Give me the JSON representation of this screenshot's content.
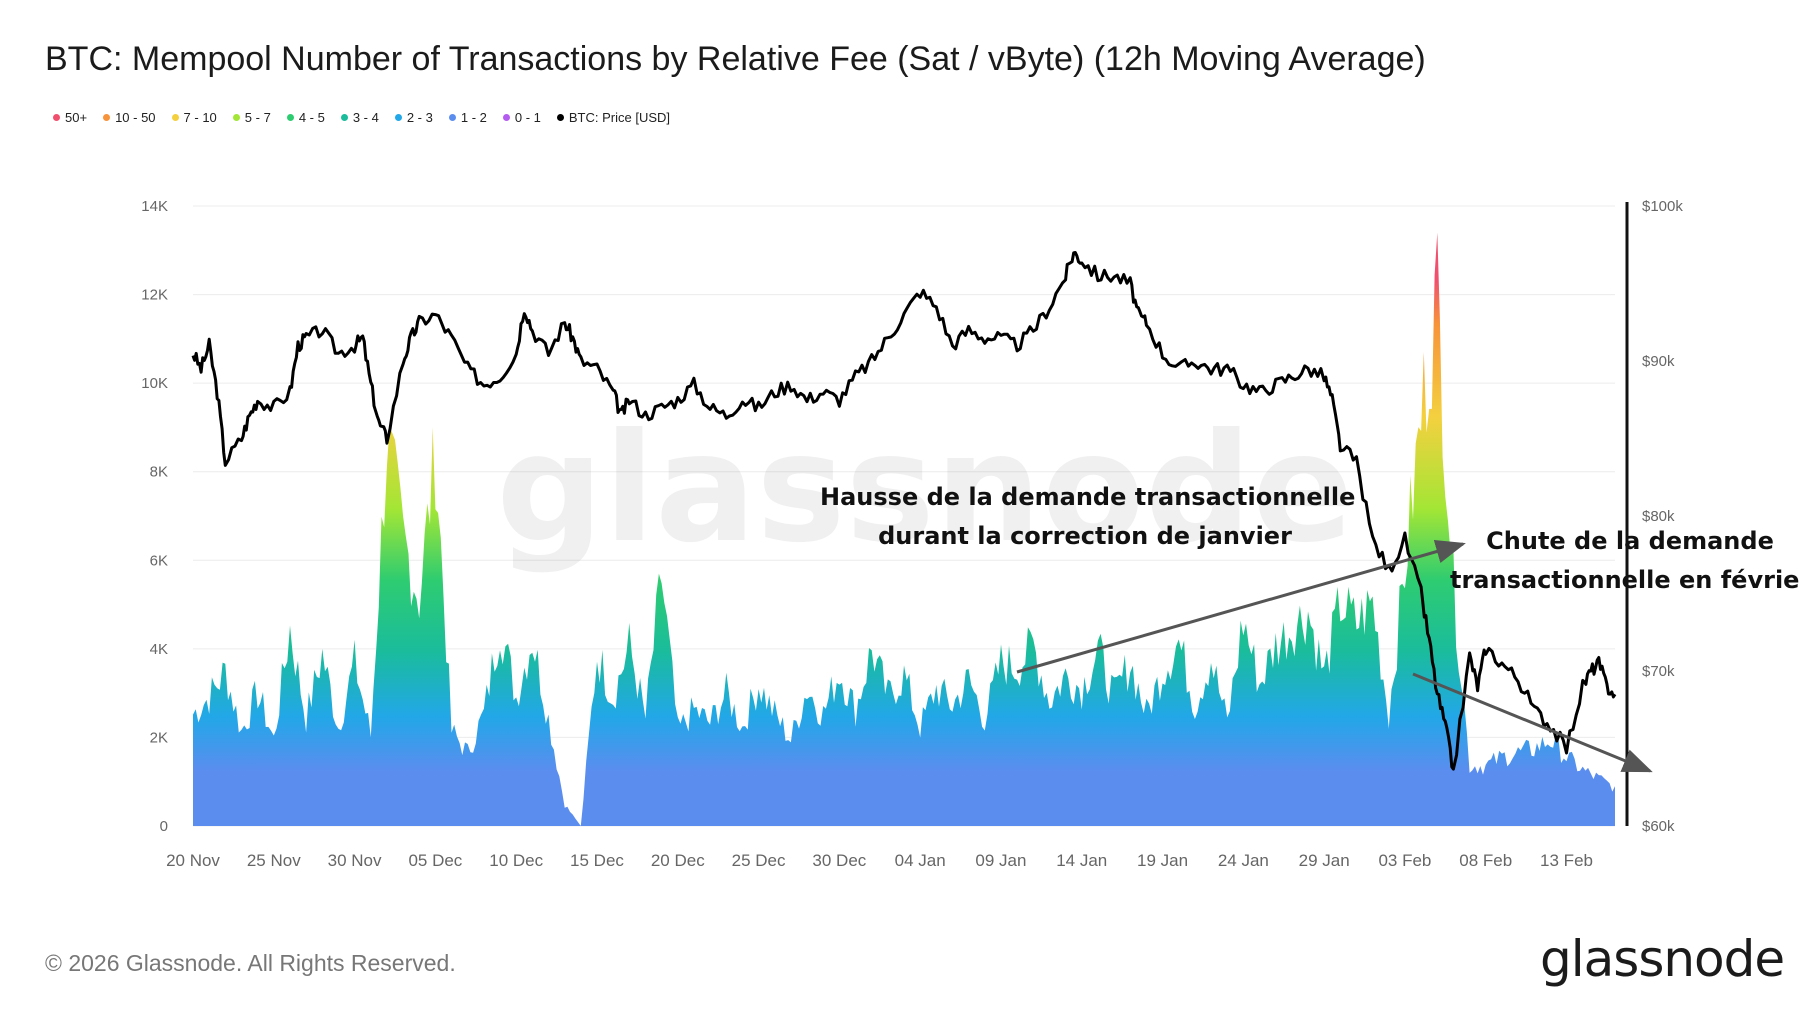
{
  "title": "BTC: Mempool Number of Transactions by Relative Fee (Sat / vByte) (12h Moving Average)",
  "legend": [
    {
      "label": "50+",
      "color": "#f0506e"
    },
    {
      "label": "10 - 50",
      "color": "#f7933a"
    },
    {
      "label": "7 - 10",
      "color": "#f4d03f"
    },
    {
      "label": "5 - 7",
      "color": "#a3e635"
    },
    {
      "label": "4 - 5",
      "color": "#2ecc71"
    },
    {
      "label": "3 - 4",
      "color": "#1abc9c"
    },
    {
      "label": "2 - 3",
      "color": "#22a7e8"
    },
    {
      "label": "1 - 2",
      "color": "#5b8def"
    },
    {
      "label": "0 - 1",
      "color": "#b45cf0"
    },
    {
      "label": "BTC: Price [USD]",
      "color": "#000000"
    }
  ],
  "annotations": {
    "rise_line1": "Hausse de la demande transactionnelle",
    "rise_line2": "durant la correction de janvier",
    "fall_line1": "Chute de la demande",
    "fall_line2": "transactionnelle en février"
  },
  "footer": {
    "copyright": "© 2026 Glassnode. All Rights Reserved.",
    "logo": "glassnode",
    "watermark": "glassnode"
  },
  "chart_data": {
    "type": "area",
    "x_tick_labels": [
      "20 Nov",
      "25 Nov",
      "30 Nov",
      "05 Dec",
      "10 Dec",
      "15 Dec",
      "20 Dec",
      "25 Dec",
      "30 Dec",
      "04 Jan",
      "09 Jan",
      "14 Jan",
      "19 Jan",
      "24 Jan",
      "29 Jan",
      "03 Feb",
      "08 Feb",
      "13 Feb"
    ],
    "x_range_days": [
      0,
      88
    ],
    "y_left": {
      "tick_labels": [
        "0",
        "2K",
        "4K",
        "6K",
        "8K",
        "10K",
        "12K",
        "14K"
      ],
      "range": [
        0,
        14000
      ]
    },
    "y_right": {
      "tick_labels": [
        "$60k",
        "$70k",
        "$80k",
        "$90k",
        "$100k"
      ],
      "range": [
        60000,
        100000
      ]
    },
    "grid": "horizontal",
    "legend_position": "top-left",
    "mempool_total": [
      [
        0,
        2600
      ],
      [
        1,
        3000
      ],
      [
        2,
        3600
      ],
      [
        3,
        2200
      ],
      [
        4,
        3100
      ],
      [
        5,
        2000
      ],
      [
        6,
        4600
      ],
      [
        7,
        2500
      ],
      [
        8,
        4000
      ],
      [
        9,
        2300
      ],
      [
        10,
        3800
      ],
      [
        11,
        2100
      ],
      [
        12,
        9000
      ],
      [
        13,
        6700
      ],
      [
        14,
        5300
      ],
      [
        15,
        8700
      ],
      [
        16,
        2200
      ],
      [
        17,
        1700
      ],
      [
        18,
        2600
      ],
      [
        19,
        4700
      ],
      [
        20,
        3000
      ],
      [
        21,
        4400
      ],
      [
        22,
        2500
      ],
      [
        23,
        500
      ],
      [
        24,
        0
      ],
      [
        25,
        4000
      ],
      [
        26,
        3000
      ],
      [
        27,
        4200
      ],
      [
        28,
        2500
      ],
      [
        29,
        5800
      ],
      [
        30,
        2200
      ],
      [
        31,
        2700
      ],
      [
        32,
        2400
      ],
      [
        33,
        3100
      ],
      [
        34,
        2300
      ],
      [
        35,
        3300
      ],
      [
        36,
        2600
      ],
      [
        37,
        2000
      ],
      [
        38,
        3200
      ],
      [
        39,
        2600
      ],
      [
        40,
        3600
      ],
      [
        41,
        2700
      ],
      [
        42,
        4100
      ],
      [
        43,
        3000
      ],
      [
        44,
        3500
      ],
      [
        45,
        2300
      ],
      [
        46,
        3200
      ],
      [
        47,
        2800
      ],
      [
        48,
        3400
      ],
      [
        49,
        2500
      ],
      [
        50,
        3800
      ],
      [
        51,
        3700
      ],
      [
        52,
        4200
      ],
      [
        53,
        2900
      ],
      [
        54,
        3500
      ],
      [
        55,
        3200
      ],
      [
        56,
        4100
      ],
      [
        57,
        3000
      ],
      [
        58,
        3800
      ],
      [
        59,
        2600
      ],
      [
        60,
        3600
      ],
      [
        61,
        4300
      ],
      [
        62,
        2800
      ],
      [
        63,
        3900
      ],
      [
        64,
        2400
      ],
      [
        65,
        4800
      ],
      [
        66,
        3300
      ],
      [
        67,
        4200
      ],
      [
        68,
        4600
      ],
      [
        69,
        5000
      ],
      [
        70,
        3500
      ],
      [
        71,
        5200
      ],
      [
        72,
        4700
      ],
      [
        73,
        5200
      ],
      [
        74,
        2600
      ],
      [
        75,
        6000
      ],
      [
        76,
        9500
      ],
      [
        77,
        12400
      ],
      [
        78,
        5600
      ],
      [
        79,
        1400
      ],
      [
        80,
        1400
      ],
      [
        81,
        1600
      ],
      [
        82,
        1700
      ],
      [
        83,
        1800
      ],
      [
        84,
        2000
      ],
      [
        85,
        1600
      ],
      [
        86,
        1300
      ],
      [
        87,
        1100
      ],
      [
        88,
        900
      ]
    ],
    "btc_price_usd": [
      [
        0,
        90500
      ],
      [
        0.5,
        89500
      ],
      [
        1,
        91000
      ],
      [
        1.5,
        88000
      ],
      [
        2,
        83500
      ],
      [
        3,
        85000
      ],
      [
        3.5,
        86500
      ],
      [
        4,
        87500
      ],
      [
        5,
        87000
      ],
      [
        6,
        88000
      ],
      [
        6.5,
        91000
      ],
      [
        7,
        91500
      ],
      [
        8,
        92000
      ],
      [
        9,
        90500
      ],
      [
        10,
        91000
      ],
      [
        10.5,
        91500
      ],
      [
        11,
        88500
      ],
      [
        11.5,
        86000
      ],
      [
        12,
        85000
      ],
      [
        13,
        90000
      ],
      [
        13.5,
        91500
      ],
      [
        14,
        92500
      ],
      [
        15,
        93000
      ],
      [
        16,
        91500
      ],
      [
        17,
        89500
      ],
      [
        18,
        88500
      ],
      [
        19,
        89000
      ],
      [
        20,
        90500
      ],
      [
        20.5,
        93500
      ],
      [
        21,
        92000
      ],
      [
        22,
        90500
      ],
      [
        23,
        92500
      ],
      [
        23.5,
        91500
      ],
      [
        24,
        90000
      ],
      [
        25,
        89500
      ],
      [
        26,
        88000
      ],
      [
        26.5,
        86500
      ],
      [
        27,
        87500
      ],
      [
        28,
        86500
      ],
      [
        29,
        87000
      ],
      [
        30,
        87500
      ],
      [
        31,
        88500
      ],
      [
        32,
        87000
      ],
      [
        33,
        86500
      ],
      [
        34,
        87500
      ],
      [
        35,
        87000
      ],
      [
        36,
        88000
      ],
      [
        37,
        88500
      ],
      [
        38,
        87500
      ],
      [
        39,
        88000
      ],
      [
        40,
        87500
      ],
      [
        41,
        89000
      ],
      [
        42,
        90000
      ],
      [
        43,
        91500
      ],
      [
        44,
        93000
      ],
      [
        45,
        94500
      ],
      [
        46,
        93500
      ],
      [
        47,
        91000
      ],
      [
        48,
        92000
      ],
      [
        49,
        91500
      ],
      [
        50,
        91500
      ],
      [
        51,
        91000
      ],
      [
        52,
        92000
      ],
      [
        53,
        93500
      ],
      [
        54,
        95500
      ],
      [
        54.5,
        97000
      ],
      [
        55,
        96500
      ],
      [
        56,
        95500
      ],
      [
        57,
        95500
      ],
      [
        58,
        95000
      ],
      [
        58.5,
        93000
      ],
      [
        59,
        92500
      ],
      [
        60,
        90500
      ],
      [
        61,
        89500
      ],
      [
        62,
        90000
      ],
      [
        63,
        89500
      ],
      [
        64,
        89500
      ],
      [
        65,
        88500
      ],
      [
        66,
        88000
      ],
      [
        67,
        88500
      ],
      [
        68,
        89000
      ],
      [
        69,
        89500
      ],
      [
        70,
        89000
      ],
      [
        70.5,
        87500
      ],
      [
        71,
        84500
      ],
      [
        72,
        83500
      ],
      [
        73,
        78500
      ],
      [
        74,
        76500
      ],
      [
        75,
        78500
      ],
      [
        76,
        75000
      ],
      [
        76.5,
        72000
      ],
      [
        77,
        68500
      ],
      [
        77.5,
        66500
      ],
      [
        78,
        63500
      ],
      [
        79,
        71000
      ],
      [
        79.5,
        69000
      ],
      [
        80,
        71500
      ],
      [
        81,
        70500
      ],
      [
        82,
        69500
      ],
      [
        83,
        67500
      ],
      [
        84,
        66500
      ],
      [
        85,
        65000
      ],
      [
        86,
        69000
      ],
      [
        86.5,
        70000
      ],
      [
        87,
        70500
      ],
      [
        87.5,
        69000
      ],
      [
        88,
        68500
      ]
    ]
  }
}
